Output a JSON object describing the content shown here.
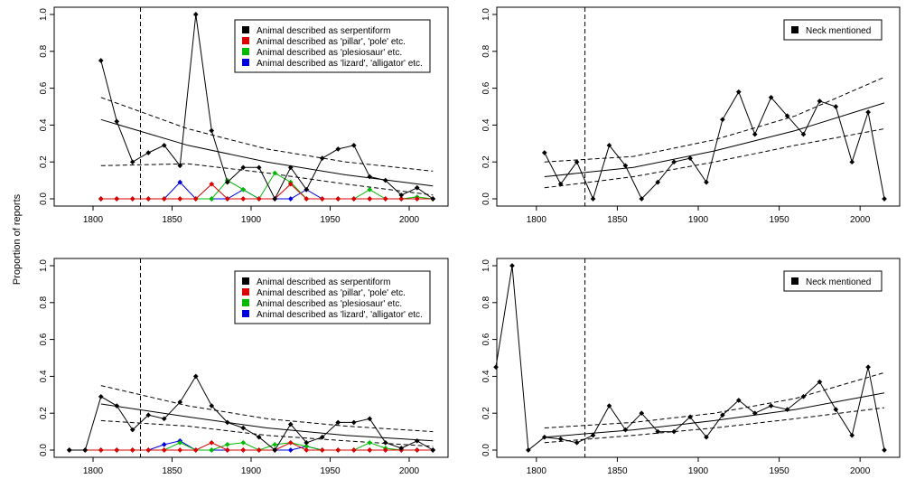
{
  "figure": {
    "ylabel": "Proportion of reports"
  },
  "chart_data": [
    {
      "type": "line",
      "xlim": [
        1780,
        2020
      ],
      "ylim": [
        0,
        1
      ],
      "x_ticks": [
        1800,
        1850,
        1900,
        1950,
        2000
      ],
      "y_ticks": [
        0.0,
        0.2,
        0.4,
        0.6,
        0.8,
        1.0
      ],
      "y_tick_labels": [
        "0.0",
        "0.2",
        "0.4",
        "0.6",
        "0.8",
        "1.0"
      ],
      "legend_position": "top-right",
      "vline_x": 1830,
      "series": [
        {
          "name": "Animal described as serpentiform",
          "color": "#000000",
          "x": [
            1805,
            1815,
            1825,
            1835,
            1845,
            1855,
            1865,
            1875,
            1885,
            1895,
            1905,
            1915,
            1925,
            1935,
            1945,
            1955,
            1965,
            1975,
            1985,
            1995,
            2005,
            2015
          ],
          "y": [
            0.75,
            0.42,
            0.2,
            0.25,
            0.29,
            0.18,
            1.0,
            0.37,
            0.09,
            0.17,
            0.17,
            0.0,
            0.17,
            0.05,
            0.22,
            0.27,
            0.29,
            0.12,
            0.1,
            0.02,
            0.06,
            0.0
          ]
        },
        {
          "name": "Animal described as 'pillar', 'pole' etc.",
          "color": "#dd0000",
          "x": [
            1805,
            1815,
            1825,
            1835,
            1845,
            1855,
            1865,
            1875,
            1885,
            1895,
            1905,
            1915,
            1925,
            1935,
            1945,
            1955,
            1965,
            1975,
            1985,
            1995,
            2005,
            2015
          ],
          "y": [
            0,
            0,
            0,
            0,
            0,
            0,
            0,
            0.08,
            0,
            0,
            0,
            0,
            0.08,
            0,
            0,
            0,
            0,
            0,
            0,
            0,
            0,
            0
          ]
        },
        {
          "name": "Animal described as 'plesiosaur' etc.",
          "color": "#00bb00",
          "x": [
            1805,
            1815,
            1825,
            1835,
            1845,
            1855,
            1865,
            1875,
            1885,
            1895,
            1905,
            1915,
            1925,
            1935,
            1945,
            1955,
            1965,
            1975,
            1985,
            1995,
            2005,
            2015
          ],
          "y": [
            0,
            0,
            0,
            0,
            0,
            0,
            0,
            0,
            0.1,
            0.05,
            0,
            0.14,
            0.09,
            0,
            0,
            0,
            0,
            0.05,
            0,
            0,
            0.01,
            0
          ]
        },
        {
          "name": "Animal described as 'lizard', 'alligator' etc.",
          "color": "#0000dd",
          "x": [
            1805,
            1815,
            1825,
            1835,
            1845,
            1855,
            1865,
            1875,
            1885,
            1895,
            1905,
            1915,
            1925,
            1935,
            1945,
            1955,
            1965,
            1975,
            1985,
            1995,
            2005,
            2015
          ],
          "y": [
            0,
            0,
            0,
            0,
            0,
            0.09,
            0,
            0,
            0,
            0.05,
            0,
            0,
            0,
            0.05,
            0,
            0,
            0,
            0,
            0,
            0,
            0,
            0
          ]
        }
      ],
      "fit": {
        "style": "solid",
        "x": [
          1805,
          1860,
          1910,
          1960,
          2015
        ],
        "y": [
          0.43,
          0.29,
          0.2,
          0.13,
          0.07
        ]
      },
      "ci_upper": {
        "style": "dashed",
        "x": [
          1805,
          1860,
          1910,
          1960,
          2015
        ],
        "y": [
          0.55,
          0.38,
          0.27,
          0.2,
          0.15
        ]
      },
      "ci_lower": {
        "style": "dashed",
        "x": [
          1805,
          1860,
          1910,
          1960,
          2015
        ],
        "y": [
          0.18,
          0.19,
          0.14,
          0.08,
          0.02
        ]
      }
    },
    {
      "type": "line",
      "xlim": [
        1780,
        2020
      ],
      "ylim": [
        0,
        1
      ],
      "x_ticks": [
        1800,
        1850,
        1900,
        1950,
        2000
      ],
      "y_ticks": [
        0.0,
        0.2,
        0.4,
        0.6,
        0.8,
        1.0
      ],
      "y_tick_labels": [
        "0.0",
        "0.2",
        "0.4",
        "0.6",
        "0.8",
        "1.0"
      ],
      "legend_position": "top-right",
      "vline_x": 1830,
      "series": [
        {
          "name": "Neck mentioned",
          "color": "#000000",
          "x": [
            1805,
            1815,
            1825,
            1835,
            1845,
            1855,
            1865,
            1875,
            1885,
            1895,
            1905,
            1915,
            1925,
            1935,
            1945,
            1955,
            1965,
            1975,
            1985,
            1995,
            2005,
            2015
          ],
          "y": [
            0.25,
            0.08,
            0.2,
            0.0,
            0.29,
            0.18,
            0.0,
            0.09,
            0.2,
            0.22,
            0.09,
            0.43,
            0.58,
            0.35,
            0.55,
            0.45,
            0.35,
            0.53,
            0.5,
            0.2,
            0.47,
            0.0
          ]
        }
      ],
      "fit": {
        "style": "solid",
        "x": [
          1805,
          1860,
          1910,
          1960,
          2015
        ],
        "y": [
          0.12,
          0.17,
          0.26,
          0.37,
          0.52
        ]
      },
      "ci_upper": {
        "style": "dashed",
        "x": [
          1805,
          1860,
          1910,
          1960,
          2015
        ],
        "y": [
          0.2,
          0.23,
          0.32,
          0.45,
          0.66
        ]
      },
      "ci_lower": {
        "style": "dashed",
        "x": [
          1805,
          1860,
          1910,
          1960,
          2015
        ],
        "y": [
          0.06,
          0.12,
          0.2,
          0.29,
          0.38
        ]
      }
    },
    {
      "type": "line",
      "xlim": [
        1780,
        2020
      ],
      "ylim": [
        0,
        1
      ],
      "x_ticks": [
        1800,
        1850,
        1900,
        1950,
        2000
      ],
      "y_ticks": [
        0.0,
        0.2,
        0.4,
        0.6,
        0.8,
        1.0
      ],
      "y_tick_labels": [
        "0.0",
        "0.2",
        "0.4",
        "0.6",
        "0.8",
        "1.0"
      ],
      "legend_position": "top-right",
      "vline_x": 1830,
      "series": [
        {
          "name": "Animal described as serpentiform",
          "color": "#000000",
          "x": [
            1785,
            1795,
            1805,
            1815,
            1825,
            1835,
            1845,
            1855,
            1865,
            1875,
            1885,
            1895,
            1905,
            1915,
            1925,
            1935,
            1945,
            1955,
            1965,
            1975,
            1985,
            1995,
            2005,
            2015
          ],
          "y": [
            0,
            0,
            0.29,
            0.24,
            0.11,
            0.19,
            0.17,
            0.26,
            0.4,
            0.24,
            0.15,
            0.12,
            0.07,
            0.0,
            0.14,
            0.04,
            0.07,
            0.15,
            0.15,
            0.17,
            0.04,
            0.01,
            0.05,
            0.0
          ]
        },
        {
          "name": "Animal described as 'pillar', 'pole' etc.",
          "color": "#dd0000",
          "x": [
            1785,
            1795,
            1805,
            1815,
            1825,
            1835,
            1845,
            1855,
            1865,
            1875,
            1885,
            1895,
            1905,
            1915,
            1925,
            1935,
            1945,
            1955,
            1965,
            1975,
            1985,
            1995,
            2005,
            2015
          ],
          "y": [
            0,
            0,
            0,
            0,
            0,
            0,
            0,
            0,
            0,
            0.04,
            0,
            0,
            0,
            0,
            0.04,
            0,
            0,
            0,
            0,
            0,
            0,
            0,
            0,
            0
          ]
        },
        {
          "name": "Animal described as 'plesiosaur' etc.",
          "color": "#00bb00",
          "x": [
            1785,
            1795,
            1805,
            1815,
            1825,
            1835,
            1845,
            1855,
            1865,
            1875,
            1885,
            1895,
            1905,
            1915,
            1925,
            1935,
            1945,
            1955,
            1965,
            1975,
            1985,
            1995,
            2005,
            2015
          ],
          "y": [
            0,
            0,
            0,
            0,
            0,
            0,
            0,
            0.04,
            0,
            0,
            0.03,
            0.04,
            0,
            0.03,
            0.04,
            0.02,
            0,
            0,
            0,
            0.04,
            0.01,
            0,
            0,
            0
          ]
        },
        {
          "name": "Animal described as 'lizard', 'alligator' etc.",
          "color": "#0000dd",
          "x": [
            1785,
            1795,
            1805,
            1815,
            1825,
            1835,
            1845,
            1855,
            1865,
            1875,
            1885,
            1895,
            1905,
            1915,
            1925,
            1935,
            1945,
            1955,
            1965,
            1975,
            1985,
            1995,
            2005,
            2015
          ],
          "y": [
            0,
            0,
            0,
            0,
            0,
            0,
            0.03,
            0.05,
            0,
            0,
            0,
            0,
            0,
            0,
            0,
            0.02,
            0,
            0,
            0,
            0,
            0,
            0,
            0,
            0
          ]
        }
      ],
      "fit": {
        "style": "solid",
        "x": [
          1805,
          1860,
          1910,
          1960,
          2015
        ],
        "y": [
          0.25,
          0.18,
          0.12,
          0.08,
          0.05
        ]
      },
      "ci_upper": {
        "style": "dashed",
        "x": [
          1805,
          1860,
          1910,
          1960,
          2015
        ],
        "y": [
          0.35,
          0.24,
          0.17,
          0.13,
          0.1
        ]
      },
      "ci_lower": {
        "style": "dashed",
        "x": [
          1805,
          1860,
          1910,
          1960,
          2015
        ],
        "y": [
          0.16,
          0.13,
          0.08,
          0.05,
          0.02
        ]
      }
    },
    {
      "type": "line",
      "xlim": [
        1780,
        2020
      ],
      "ylim": [
        0,
        1
      ],
      "x_ticks": [
        1800,
        1850,
        1900,
        1950,
        2000
      ],
      "y_ticks": [
        0.0,
        0.2,
        0.4,
        0.6,
        0.8,
        1.0
      ],
      "y_tick_labels": [
        "0.0",
        "0.2",
        "0.4",
        "0.6",
        "0.8",
        "1.0"
      ],
      "legend_position": "top-right",
      "vline_x": 1830,
      "series": [
        {
          "name": "Neck mentioned",
          "color": "#000000",
          "x": [
            1775,
            1785,
            1795,
            1805,
            1815,
            1825,
            1835,
            1845,
            1855,
            1865,
            1875,
            1885,
            1895,
            1905,
            1915,
            1925,
            1935,
            1945,
            1955,
            1965,
            1975,
            1985,
            1995,
            2005,
            2015
          ],
          "y": [
            0.45,
            1.0,
            0.0,
            0.07,
            0.06,
            0.04,
            0.08,
            0.24,
            0.11,
            0.2,
            0.1,
            0.1,
            0.18,
            0.07,
            0.19,
            0.27,
            0.2,
            0.24,
            0.22,
            0.29,
            0.37,
            0.22,
            0.08,
            0.45,
            0.0
          ]
        }
      ],
      "fit": {
        "style": "solid",
        "x": [
          1805,
          1860,
          1910,
          1960,
          2015
        ],
        "y": [
          0.07,
          0.11,
          0.16,
          0.22,
          0.31
        ]
      },
      "ci_upper": {
        "style": "dashed",
        "x": [
          1805,
          1860,
          1910,
          1960,
          2015
        ],
        "y": [
          0.12,
          0.15,
          0.2,
          0.28,
          0.42
        ]
      },
      "ci_lower": {
        "style": "dashed",
        "x": [
          1805,
          1860,
          1910,
          1960,
          2015
        ],
        "y": [
          0.04,
          0.08,
          0.12,
          0.17,
          0.23
        ]
      }
    }
  ]
}
